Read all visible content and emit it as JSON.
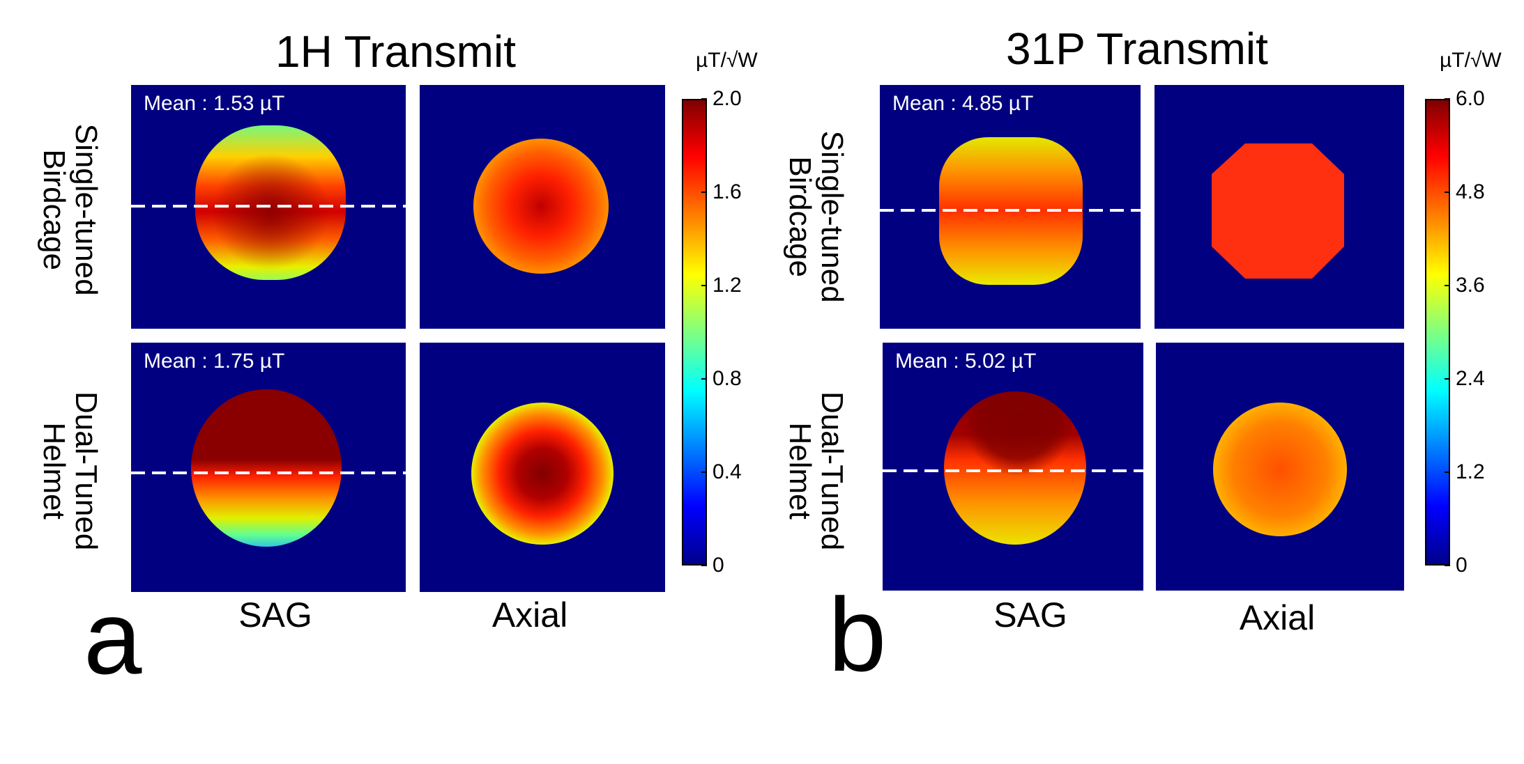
{
  "panel_a": {
    "letter": "a",
    "title": "1H Transmit",
    "colorbar_unit": "µT/√W",
    "colorbar_ticks": [
      "2.0",
      "1.6",
      "1.2",
      "0.8",
      "0.4",
      "0"
    ],
    "colorbar_range": [
      0,
      2.0
    ],
    "row_labels": [
      {
        "line1": "Single-tuned",
        "line2": "Birdcage"
      },
      {
        "line1": "Dual-Tuned",
        "line2": "Helmet"
      }
    ],
    "col_labels": [
      "SAG",
      "Axial"
    ],
    "means": [
      "Mean : 1.53 µT",
      "Mean : 1.75 µT"
    ]
  },
  "panel_b": {
    "letter": "b",
    "title": "31P Transmit",
    "colorbar_unit": "µT/√W",
    "colorbar_ticks": [
      "6.0",
      "4.8",
      "3.6",
      "2.4",
      "1.2",
      "0"
    ],
    "colorbar_range": [
      0,
      6.0
    ],
    "row_labels": [
      {
        "line1": "Single-tuned",
        "line2": "Birdcage"
      },
      {
        "line1": "Dual-Tuned",
        "line2": "Helmet"
      }
    ],
    "col_labels": [
      "SAG",
      "Axial"
    ],
    "means": [
      "Mean : 4.85 µT",
      "Mean : 5.02 µT"
    ]
  },
  "colors": {
    "background_field": "#000080",
    "dashed_line": "#ffffff"
  }
}
